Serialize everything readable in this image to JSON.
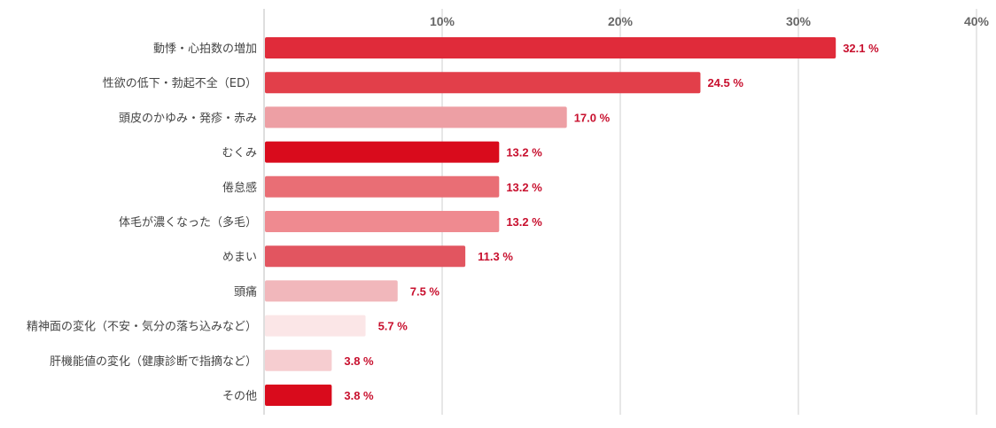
{
  "chart_data": {
    "type": "bar",
    "orientation": "horizontal",
    "title": "",
    "xlabel": "",
    "ylabel": "",
    "xlim": [
      0,
      40
    ],
    "ticks": [
      10,
      20,
      30,
      40
    ],
    "tick_labels": [
      "10%",
      "20%",
      "30%",
      "40%"
    ],
    "grid": true,
    "categories": [
      "動悸・心拍数の増加",
      "性欲の低下・勃起不全（ED）",
      "頭皮のかゆみ・発疹・赤み",
      "むくみ",
      "倦怠感",
      "体毛が濃くなった（多毛）",
      "めまい",
      "頭痛",
      "精神面の変化（不安・気分の落ち込みなど）",
      "肝機能値の変化（健康診断で指摘など）",
      "その他"
    ],
    "values": [
      32.1,
      24.5,
      17.0,
      13.2,
      13.2,
      13.2,
      11.3,
      7.5,
      5.7,
      3.8,
      3.8
    ],
    "value_labels": [
      "32.1 %",
      "24.5 %",
      "17.0 %",
      "13.2 %",
      "13.2 %",
      "13.2 %",
      "11.3 %",
      "7.5 %",
      "5.7 %",
      "3.8 %",
      "3.8 %"
    ],
    "colors": [
      "#e02b3a",
      "#e23f4a",
      "#ed9fa4",
      "#d90b1c",
      "#e96e75",
      "#ef8a90",
      "#e25560",
      "#f1b7bb",
      "#fbe6e7",
      "#f6cdd0",
      "#d90b1c"
    ],
    "value_label_color": "#c8102e"
  }
}
